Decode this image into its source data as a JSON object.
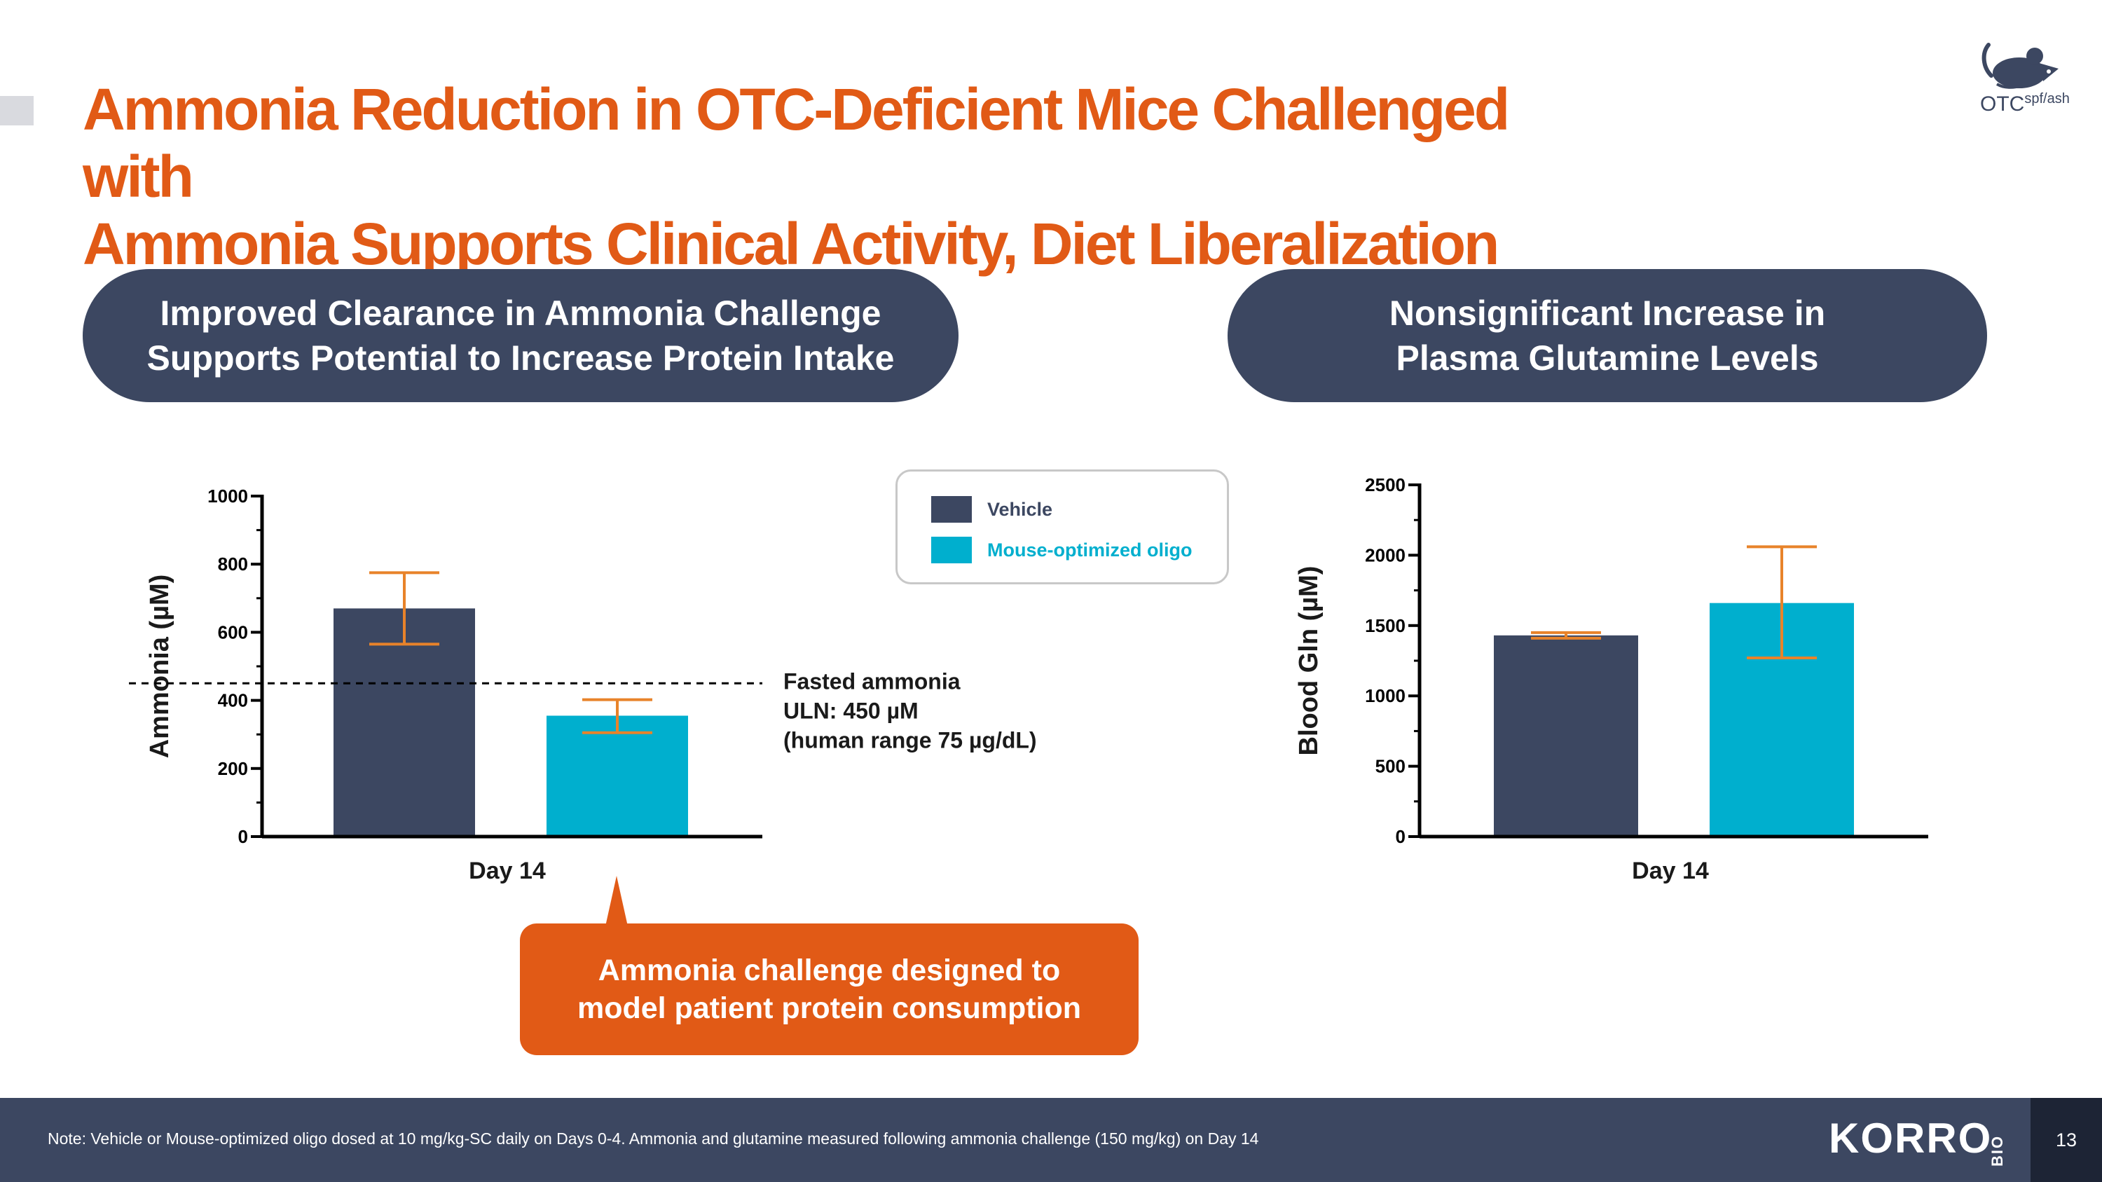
{
  "title": {
    "line1": "Ammonia Reduction in OTC-Deficient Mice Challenged with",
    "line2": "Ammonia Supports Clinical Activity, Diet Liberalization"
  },
  "logo_top": {
    "main": "OTC",
    "superscript": "spf/ash",
    "icon": "mouse-icon"
  },
  "left_panel": {
    "pill_line1": "Improved Clearance in Ammonia Challenge",
    "pill_line2": "Supports Potential to Increase Protein Intake"
  },
  "right_panel": {
    "pill_line1": "Nonsignificant Increase in",
    "pill_line2": "Plasma Glutamine Levels"
  },
  "legend": {
    "items": [
      {
        "label": "Vehicle",
        "color": "#3c4761",
        "text_color": "#3c4761"
      },
      {
        "label": "Mouse-optimized oligo",
        "color": "#00afce",
        "text_color": "#00afce"
      }
    ]
  },
  "chart_data": [
    {
      "type": "bar",
      "title": "",
      "xlabel": "",
      "ylabel": "Ammonia (µM)",
      "categories": [
        "Day 14"
      ],
      "ylim": [
        0,
        1000
      ],
      "yticks": [
        0,
        200,
        400,
        600,
        800,
        1000
      ],
      "series": [
        {
          "name": "Vehicle",
          "values": [
            670
          ],
          "error": [
            [
              565,
              775
            ]
          ],
          "color": "#3c4761"
        },
        {
          "name": "Mouse-optimized oligo",
          "values": [
            355
          ],
          "error": [
            [
              305,
              402
            ]
          ],
          "color": "#00afce"
        }
      ],
      "reference_line": {
        "value": 450,
        "style": "dashed",
        "label_lines": [
          "Fasted ammonia",
          "ULN: 450 µM",
          "(human range 75 µg/dL)"
        ]
      },
      "error_color": "#e8832a"
    },
    {
      "type": "bar",
      "title": "",
      "xlabel": "",
      "ylabel": "Blood Gln (µM)",
      "categories": [
        "Day 14"
      ],
      "ylim": [
        0,
        2500
      ],
      "yticks": [
        0,
        500,
        1000,
        1500,
        2000,
        2500
      ],
      "series": [
        {
          "name": "Vehicle",
          "values": [
            1430
          ],
          "error": [
            [
              1410,
              1450
            ]
          ],
          "color": "#3c4761"
        },
        {
          "name": "Mouse-optimized oligo",
          "values": [
            1660
          ],
          "error": [
            [
              1270,
              2060
            ]
          ],
          "color": "#00afce"
        }
      ],
      "error_color": "#e8832a"
    }
  ],
  "callout": {
    "line1": "Ammonia challenge designed to",
    "line2": "model patient protein consumption"
  },
  "footer": {
    "note": "Note: Vehicle or Mouse-optimized oligo dosed at 10 mg/kg-SC daily on Days 0-4. Ammonia and glutamine measured following ammonia challenge (150 mg/kg) on Day 14",
    "brand": "KORRO",
    "brand_suffix": "BIO",
    "page_number": "13"
  }
}
